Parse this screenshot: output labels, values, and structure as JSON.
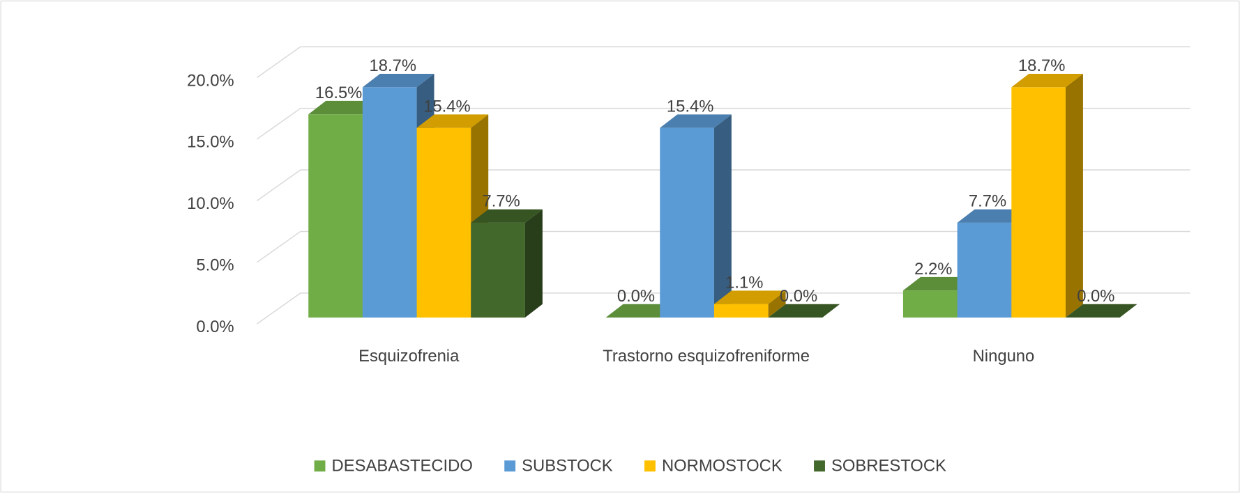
{
  "chart_data": {
    "type": "bar3d",
    "categories": [
      "Esquizofrenia",
      "Trastorno esquizofreniforme",
      "Ninguno"
    ],
    "series": [
      {
        "name": "DESABASTECIDO",
        "color": "#70ad47",
        "values": [
          16.5,
          0.0,
          2.2
        ],
        "value_labels": [
          "16.5%",
          "0.0%",
          "2.2%"
        ]
      },
      {
        "name": "SUBSTOCK",
        "color": "#5b9bd5",
        "values": [
          18.7,
          15.4,
          7.7
        ],
        "value_labels": [
          "18.7%",
          "15.4%",
          "7.7%"
        ]
      },
      {
        "name": "NORMOSTOCK",
        "color": "#ffc000",
        "values": [
          15.4,
          1.1,
          18.7
        ],
        "value_labels": [
          "15.4%",
          "1.1%",
          "18.7%"
        ]
      },
      {
        "name": "SOBRESTOCK",
        "color": "#43682b",
        "values": [
          7.7,
          0.0,
          0.0
        ],
        "value_labels": [
          "7.7%",
          "0.0%",
          "0.0%"
        ]
      }
    ],
    "ylim": [
      0,
      20
    ],
    "yticks": [
      {
        "value": 0,
        "label": "0.0%"
      },
      {
        "value": 5,
        "label": "5.0%"
      },
      {
        "value": 10,
        "label": "10.0%"
      },
      {
        "value": 15,
        "label": "15.0%"
      },
      {
        "value": 20,
        "label": "20.0%"
      }
    ],
    "grid": true,
    "legend": "bottom"
  }
}
